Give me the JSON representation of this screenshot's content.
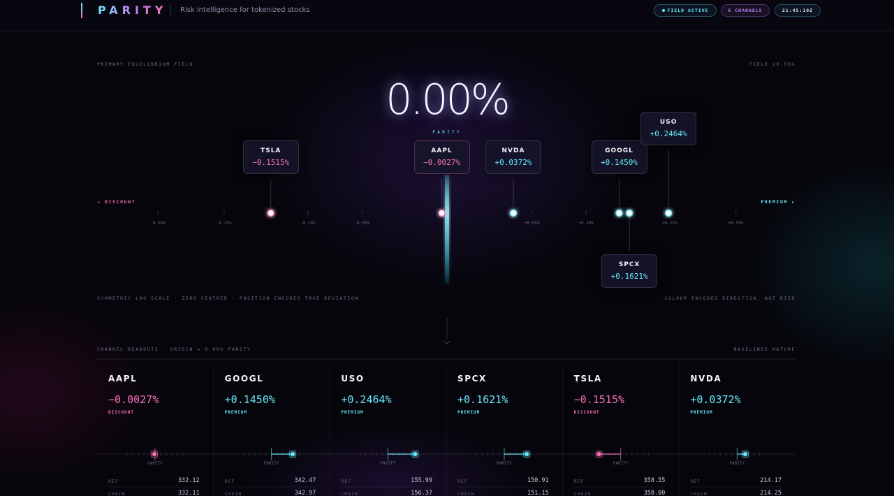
{
  "header": {
    "logo": "PARITY",
    "tagline": "Risk intelligence for tokenized stocks",
    "status": [
      "FIELD ACTIVE",
      "6 CHANNELS",
      "21:45:10Z"
    ]
  },
  "field": {
    "title": "PRIMARY EQUILIBRIUM FIELD",
    "range": "FIELD ±0.50%",
    "center_value": "0.00%",
    "center_label": "PARITY",
    "left_label": "◂ DISCOUNT",
    "right_label": "PREMIUM ▸",
    "ticks": [
      {
        "value": -0.5,
        "label": "-0.50%"
      },
      {
        "value": -0.25,
        "label": "-0.25%"
      },
      {
        "value": -0.1,
        "label": "-0.10%"
      },
      {
        "value": -0.05,
        "label": "-0.05%"
      },
      {
        "value": 0.05,
        "label": "+0.05%"
      },
      {
        "value": 0.1,
        "label": "+0.10%"
      },
      {
        "value": 0.25,
        "label": "+0.25%"
      },
      {
        "value": 0.5,
        "label": "+0.50%"
      }
    ],
    "footnote_left": "SYMMETRIC LOG SCALE · ZERO CENTRED · POSITION ENCODES TRUE DEVIATION",
    "footnote_right": "COLOUR ENCODES DIRECTION, NOT RISK"
  },
  "readouts": {
    "title": "CHANNEL READOUTS · ORIGIN = 0.00% PARITY",
    "status": "BASELINES MATURE",
    "parity_label": "PARITY",
    "ref_label": "REF",
    "chain_label": "CHAIN"
  },
  "channels": [
    {
      "ticker": "AAPL",
      "value": -0.0027,
      "label": "−0.0027%",
      "status": "DISCOUNT",
      "ref": "332.12",
      "chain": "332.11"
    },
    {
      "ticker": "GOOGL",
      "value": 0.145,
      "label": "+0.1450%",
      "status": "PREMIUM",
      "ref": "342.47",
      "chain": "342.97"
    },
    {
      "ticker": "USO",
      "value": 0.2464,
      "label": "+0.2464%",
      "status": "PREMIUM",
      "ref": "155.99",
      "chain": "156.37"
    },
    {
      "ticker": "SPCX",
      "value": 0.1621,
      "label": "+0.1621%",
      "status": "PREMIUM",
      "ref": "150.91",
      "chain": "151.15"
    },
    {
      "ticker": "TSLA",
      "value": -0.1515,
      "label": "−0.1515%",
      "status": "DISCOUNT",
      "ref": "358.55",
      "chain": "358.00"
    },
    {
      "ticker": "NVDA",
      "value": 0.0372,
      "label": "+0.0372%",
      "status": "PREMIUM",
      "ref": "214.17",
      "chain": "214.25"
    }
  ]
}
